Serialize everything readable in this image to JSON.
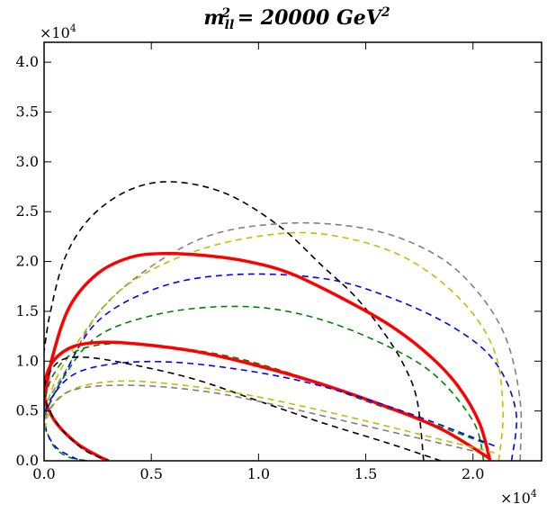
{
  "chart_data": {
    "type": "line",
    "title": "m_ll² = 20000 GeV²",
    "title_parts": {
      "base": "m",
      "sub": "ll",
      "sup": "2",
      "rest": " = 20000 GeV",
      "rest_sup": "2"
    },
    "xlabel": "",
    "ylabel": "",
    "x_multiplier_label": "×10",
    "x_multiplier_exp": "4",
    "y_multiplier_label": "×10",
    "y_multiplier_exp": "4",
    "xlim": [
      0,
      2.32
    ],
    "ylim": [
      0,
      4.2
    ],
    "x_ticks": [
      0.0,
      0.5,
      1.0,
      1.5,
      2.0
    ],
    "x_tick_labels": [
      "0.0",
      "0.5",
      "1.0",
      "1.5",
      "2.0"
    ],
    "y_ticks": [
      0.0,
      0.5,
      1.0,
      1.5,
      2.0,
      2.5,
      3.0,
      3.5,
      4.0
    ],
    "y_tick_labels": [
      "0.0",
      "0.5",
      "1.0",
      "1.5",
      "2.0",
      "2.5",
      "3.0",
      "3.5",
      "4.0"
    ],
    "grid": false,
    "series": [
      {
        "name": "black-outer",
        "color": "#000000",
        "style": "dashed",
        "width": 1.6,
        "x": [
          1.77,
          1.74,
          1.68,
          1.58,
          1.45,
          1.3,
          1.1,
          0.85,
          0.6,
          0.4,
          0.22,
          0.1,
          0.03,
          0.0
        ],
        "y": [
          0.0,
          0.6,
          0.95,
          1.3,
          1.65,
          1.95,
          2.35,
          2.68,
          2.8,
          2.72,
          2.45,
          2.05,
          1.5,
          1.1
        ]
      },
      {
        "name": "gray-outer",
        "color": "#808080",
        "style": "dashed",
        "width": 1.6,
        "x": [
          2.22,
          2.22,
          2.15,
          2.0,
          1.8,
          1.5,
          1.1,
          0.7,
          0.3,
          0.1,
          0.0
        ],
        "y": [
          0.0,
          0.6,
          1.25,
          1.75,
          2.1,
          2.33,
          2.38,
          2.2,
          1.6,
          0.9,
          0.55
        ]
      },
      {
        "name": "yellow-outer",
        "color": "#bfbf00",
        "style": "dashed",
        "width": 1.6,
        "x": [
          2.12,
          2.14,
          2.1,
          1.95,
          1.7,
          1.4,
          1.1,
          0.7,
          0.35,
          0.1,
          0.0
        ],
        "y": [
          0.0,
          0.5,
          1.1,
          1.6,
          2.02,
          2.24,
          2.28,
          2.1,
          1.7,
          1.0,
          0.5
        ]
      },
      {
        "name": "blue-outer",
        "color": "#0000ff",
        "style": "dashed",
        "width": 1.6,
        "x": [
          2.18,
          2.2,
          2.1,
          1.9,
          1.6,
          1.3,
          0.9,
          0.55,
          0.25,
          0.08,
          0.0
        ],
        "y": [
          0.0,
          0.5,
          1.0,
          1.35,
          1.65,
          1.83,
          1.87,
          1.75,
          1.4,
          0.8,
          0.45
        ]
      },
      {
        "name": "green-outer",
        "color": "#008000",
        "style": "dashed",
        "width": 1.6,
        "x": [
          2.05,
          2.0,
          1.8,
          1.5,
          1.2,
          0.9,
          0.55,
          0.25,
          0.08,
          0.0
        ],
        "y": [
          0.0,
          0.4,
          0.9,
          1.25,
          1.47,
          1.55,
          1.48,
          1.25,
          0.8,
          0.45
        ]
      },
      {
        "name": "red-outer",
        "color": "#ff0000",
        "style": "solid",
        "width": 3.5,
        "x": [
          2.08,
          2.03,
          1.93,
          1.8,
          1.62,
          1.4,
          1.15,
          0.95,
          0.75,
          0.55,
          0.4,
          0.25,
          0.12,
          0.04,
          0.0
        ],
        "y": [
          0.0,
          0.38,
          0.75,
          1.05,
          1.35,
          1.62,
          1.88,
          2.0,
          2.06,
          2.08,
          2.04,
          1.88,
          1.55,
          1.05,
          0.6
        ]
      },
      {
        "name": "green-inner",
        "color": "#008000",
        "style": "dashed",
        "width": 1.6,
        "x": [
          2.05,
          1.8,
          1.5,
          1.2,
          0.9,
          0.6,
          0.35,
          0.15,
          0.04,
          0.0,
          0.03,
          0.1,
          0.2
        ],
        "y": [
          0.18,
          0.38,
          0.6,
          0.84,
          1.03,
          1.14,
          1.18,
          1.1,
          0.85,
          0.5,
          0.2,
          0.05,
          0.0
        ]
      },
      {
        "name": "red-inner",
        "color": "#ff0000",
        "style": "solid",
        "width": 3.5,
        "x": [
          2.08,
          1.85,
          1.55,
          1.25,
          0.95,
          0.7,
          0.45,
          0.28,
          0.14,
          0.05,
          0.01,
          0.0,
          0.05,
          0.15,
          0.25,
          0.3
        ],
        "y": [
          0.02,
          0.32,
          0.58,
          0.8,
          0.98,
          1.1,
          1.17,
          1.19,
          1.15,
          1.02,
          0.85,
          0.65,
          0.4,
          0.18,
          0.05,
          0.0
        ]
      },
      {
        "name": "blue-inner",
        "color": "#0000ff",
        "style": "dashed",
        "width": 1.6,
        "x": [
          2.1,
          1.8,
          1.5,
          1.2,
          0.9,
          0.6,
          0.35,
          0.15,
          0.04,
          0.0,
          0.05,
          0.15,
          0.2
        ],
        "y": [
          0.15,
          0.4,
          0.62,
          0.8,
          0.92,
          0.99,
          0.98,
          0.88,
          0.65,
          0.4,
          0.15,
          0.02,
          0.0
        ]
      },
      {
        "name": "black-inner",
        "color": "#000000",
        "style": "dashed",
        "width": 1.6,
        "x": [
          1.85,
          1.6,
          1.3,
          1.0,
          0.7,
          0.4,
          0.18,
          0.06,
          0.0,
          0.06,
          0.18,
          0.3
        ],
        "y": [
          0.0,
          0.18,
          0.38,
          0.6,
          0.82,
          0.97,
          1.04,
          0.98,
          0.7,
          0.38,
          0.12,
          0.0
        ]
      },
      {
        "name": "yellow-inner",
        "color": "#bfbf00",
        "style": "dashed",
        "width": 1.6,
        "x": [
          2.1,
          1.8,
          1.5,
          1.2,
          0.9,
          0.6,
          0.35,
          0.15,
          0.04,
          0.0
        ],
        "y": [
          0.08,
          0.24,
          0.4,
          0.55,
          0.68,
          0.77,
          0.8,
          0.73,
          0.55,
          0.3
        ]
      },
      {
        "name": "gray-inner",
        "color": "#808080",
        "style": "dashed",
        "width": 1.6,
        "x": [
          2.0,
          1.7,
          1.4,
          1.1,
          0.8,
          0.5,
          0.25,
          0.1,
          0.02,
          0.0
        ],
        "y": [
          0.1,
          0.25,
          0.4,
          0.55,
          0.68,
          0.75,
          0.75,
          0.68,
          0.5,
          0.35
        ]
      }
    ]
  }
}
